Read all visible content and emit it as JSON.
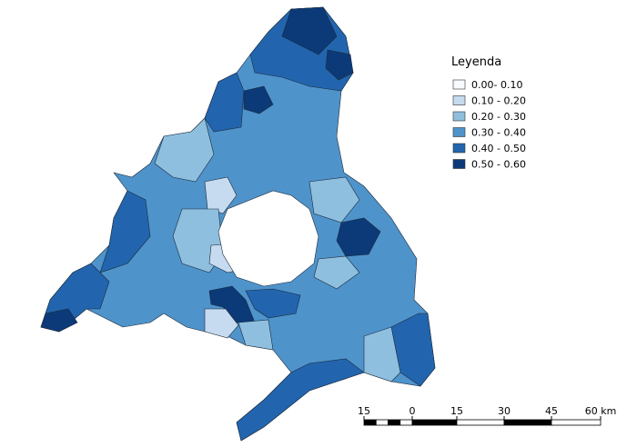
{
  "legend": {
    "title": "Leyenda",
    "items": [
      {
        "label": "0.00- 0.10",
        "color": "#f7fbff"
      },
      {
        "label": "0.10 - 0.20",
        "color": "#c6dbef"
      },
      {
        "label": "0.20 - 0.30",
        "color": "#8fbfdf"
      },
      {
        "label": "0.30 - 0.40",
        "color": "#4f93cb"
      },
      {
        "label": "0.40 - 0.50",
        "color": "#2265ae"
      },
      {
        "label": "0.50 - 0.60",
        "color": "#0c3a78"
      }
    ]
  },
  "scale_bar": {
    "labels": [
      "15",
      "0",
      "15",
      "30",
      "45",
      "60 km"
    ]
  }
}
